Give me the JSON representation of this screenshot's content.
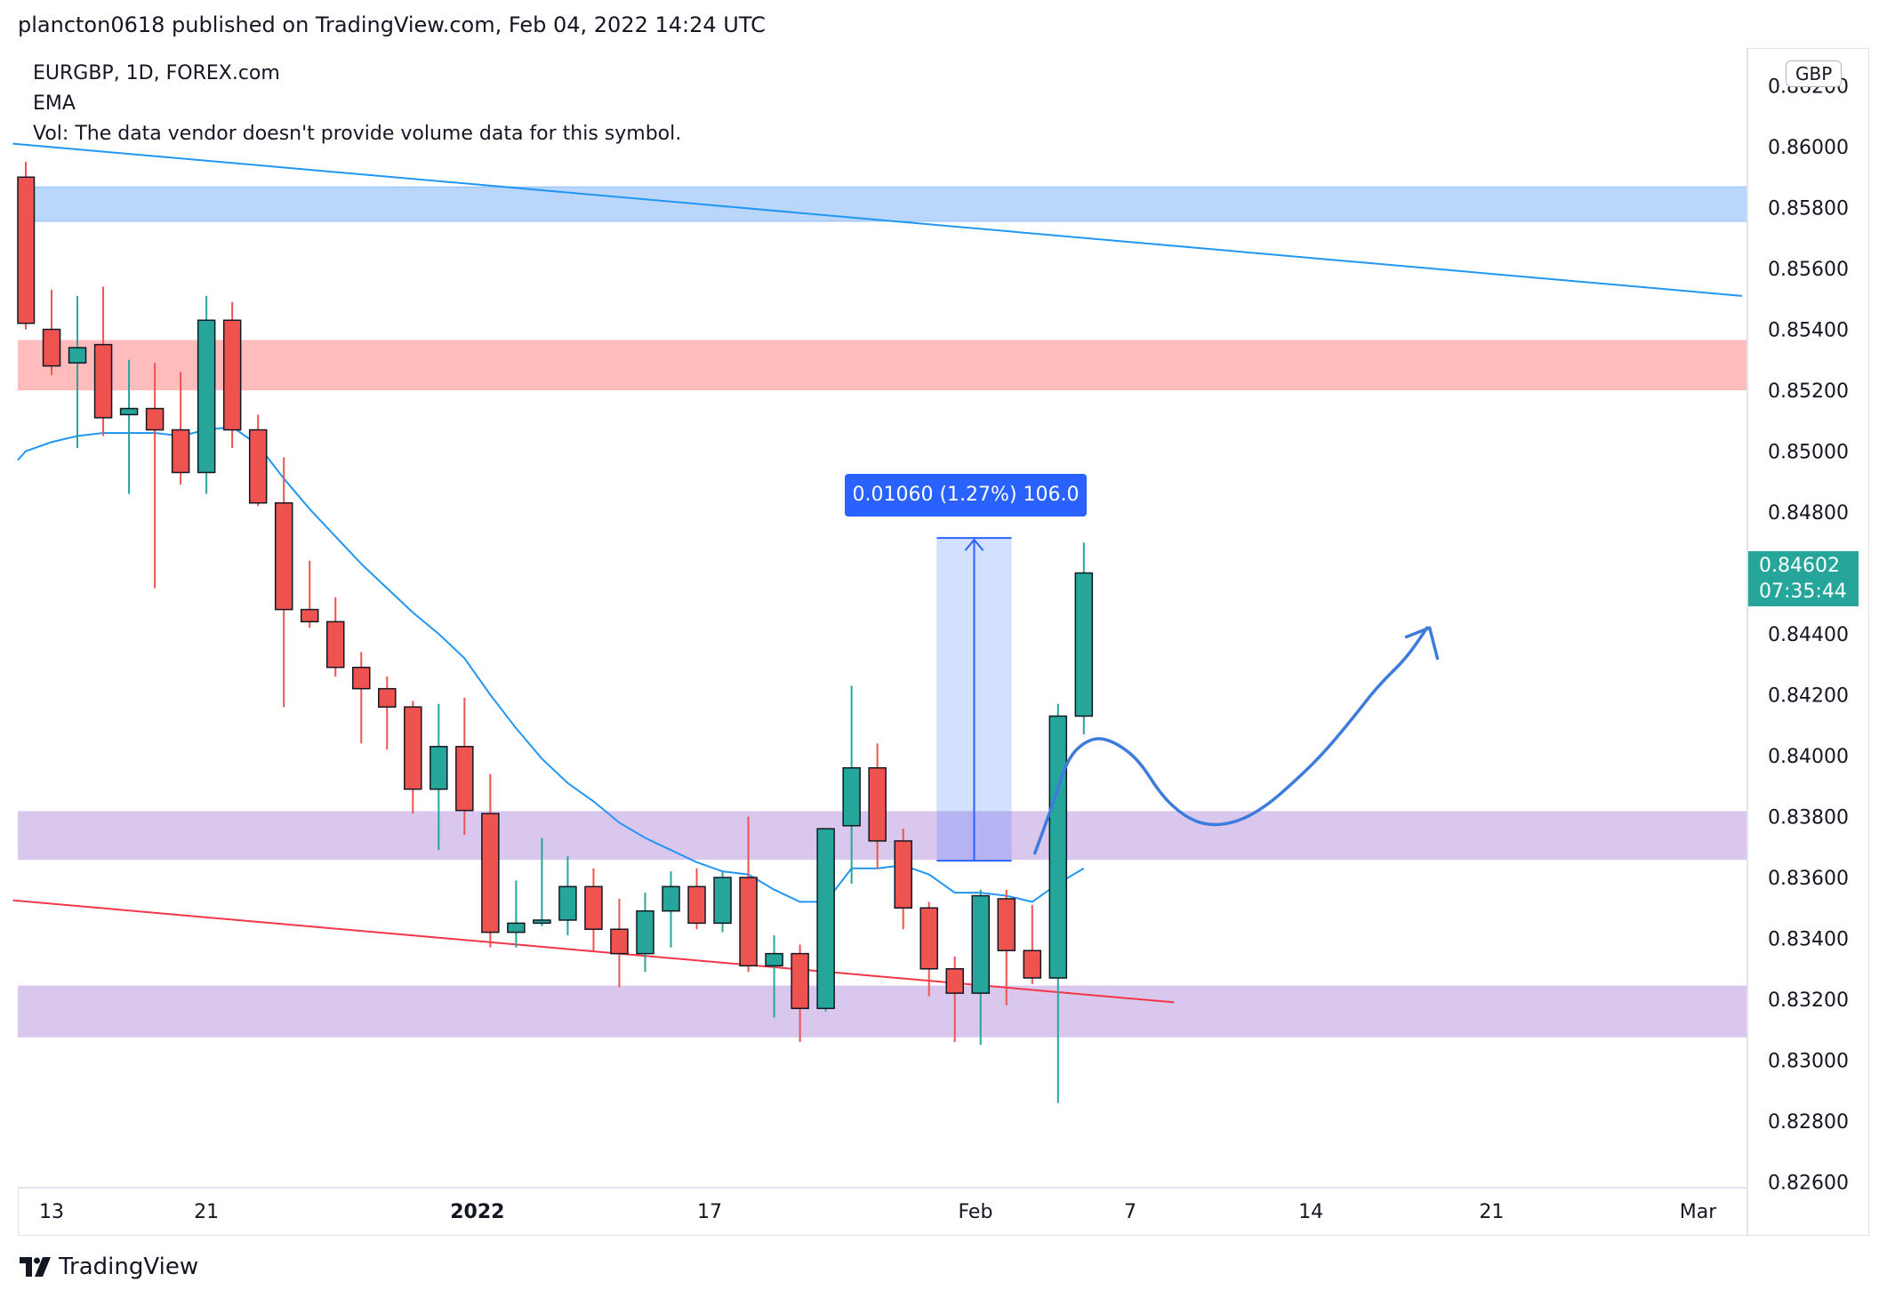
{
  "header": {
    "published_text": "plancton0618 published on TradingView.com, Feb 04, 2022 14:24 UTC"
  },
  "legend": {
    "symbol": "EURGBP, 1D, FOREX.com",
    "indicator": "EMA",
    "volume_note": "Vol: The data vendor doesn't provide volume data for this symbol."
  },
  "currency": "GBP",
  "price_tag": {
    "price": "0.84602",
    "countdown": "07:35:44"
  },
  "measure_label": "0.01060 (1.27%) 106.0",
  "brand": "TradingView",
  "colors": {
    "up": "#26a69a",
    "down": "#ef5350",
    "ema": "#2196f3",
    "trend_upper": "#2196f3",
    "trend_lower": "#f23645",
    "zone_blue": "#bbd6fb",
    "zone_red": "#ffbcbc",
    "zone_purple": "#d9c7ee",
    "measure": "#2962ff",
    "projection": "#3d7bdc"
  },
  "chart_data": {
    "type": "candlestick",
    "symbol": "EURGBP",
    "timeframe": "1D",
    "ylim": [
      0.8255,
      0.8638
    ],
    "price_ticks": [
      "0.86000",
      "0.85800",
      "0.85600",
      "0.85400",
      "0.85200",
      "0.85000",
      "0.84800",
      "0.84400",
      "0.84200",
      "0.84000",
      "0.83800",
      "0.83600",
      "0.83400",
      "0.83200",
      "0.83000",
      "0.82800",
      "0.82600"
    ],
    "time_ticks": [
      {
        "label": "13",
        "index": 1
      },
      {
        "label": "21",
        "index": 7
      },
      {
        "label": "2022",
        "index": 17.5,
        "bold": true
      },
      {
        "label": "17",
        "index": 26.5
      },
      {
        "label": "Feb",
        "index": 36.8
      },
      {
        "label": "7",
        "index": 42.8
      },
      {
        "label": "14",
        "index": 49.8
      },
      {
        "label": "21",
        "index": 56.8
      },
      {
        "label": "Mar",
        "index": 64.8
      }
    ],
    "candles": [
      {
        "o": 0.859,
        "h": 0.8595,
        "l": 0.854,
        "c": 0.8542
      },
      {
        "o": 0.854,
        "h": 0.8553,
        "l": 0.8525,
        "c": 0.8528
      },
      {
        "o": 0.8529,
        "h": 0.8551,
        "l": 0.8501,
        "c": 0.8534
      },
      {
        "o": 0.8535,
        "h": 0.8554,
        "l": 0.8505,
        "c": 0.8511
      },
      {
        "o": 0.8512,
        "h": 0.853,
        "l": 0.8486,
        "c": 0.8514
      },
      {
        "o": 0.8514,
        "h": 0.8529,
        "l": 0.8455,
        "c": 0.8507
      },
      {
        "o": 0.8507,
        "h": 0.8526,
        "l": 0.8489,
        "c": 0.8493
      },
      {
        "o": 0.8493,
        "h": 0.8551,
        "l": 0.8486,
        "c": 0.8543
      },
      {
        "o": 0.8543,
        "h": 0.8549,
        "l": 0.8501,
        "c": 0.8507
      },
      {
        "o": 0.8507,
        "h": 0.8512,
        "l": 0.8482,
        "c": 0.8483
      },
      {
        "o": 0.8483,
        "h": 0.8498,
        "l": 0.8416,
        "c": 0.8448
      },
      {
        "o": 0.8448,
        "h": 0.8464,
        "l": 0.8442,
        "c": 0.8444
      },
      {
        "o": 0.8444,
        "h": 0.8452,
        "l": 0.8426,
        "c": 0.8429
      },
      {
        "o": 0.8429,
        "h": 0.8434,
        "l": 0.8404,
        "c": 0.8422
      },
      {
        "o": 0.8422,
        "h": 0.8426,
        "l": 0.8402,
        "c": 0.8416
      },
      {
        "o": 0.8416,
        "h": 0.8418,
        "l": 0.8381,
        "c": 0.8389
      },
      {
        "o": 0.8389,
        "h": 0.8417,
        "l": 0.8369,
        "c": 0.8403
      },
      {
        "o": 0.8403,
        "h": 0.8419,
        "l": 0.8374,
        "c": 0.8382
      },
      {
        "o": 0.8381,
        "h": 0.8394,
        "l": 0.8337,
        "c": 0.8342
      },
      {
        "o": 0.8342,
        "h": 0.8359,
        "l": 0.8337,
        "c": 0.8345
      },
      {
        "o": 0.8345,
        "h": 0.8373,
        "l": 0.8344,
        "c": 0.8346
      },
      {
        "o": 0.8346,
        "h": 0.8367,
        "l": 0.8341,
        "c": 0.8357
      },
      {
        "o": 0.8357,
        "h": 0.8363,
        "l": 0.8336,
        "c": 0.8343
      },
      {
        "o": 0.8343,
        "h": 0.8353,
        "l": 0.8324,
        "c": 0.8335
      },
      {
        "o": 0.8335,
        "h": 0.8355,
        "l": 0.8329,
        "c": 0.8349
      },
      {
        "o": 0.8349,
        "h": 0.8362,
        "l": 0.8337,
        "c": 0.8357
      },
      {
        "o": 0.8357,
        "h": 0.8363,
        "l": 0.8343,
        "c": 0.8345
      },
      {
        "o": 0.8345,
        "h": 0.8362,
        "l": 0.8342,
        "c": 0.836
      },
      {
        "o": 0.836,
        "h": 0.838,
        "l": 0.8329,
        "c": 0.8331
      },
      {
        "o": 0.8331,
        "h": 0.8341,
        "l": 0.8314,
        "c": 0.8335
      },
      {
        "o": 0.8335,
        "h": 0.8338,
        "l": 0.8306,
        "c": 0.8317
      },
      {
        "o": 0.8317,
        "h": 0.8374,
        "l": 0.8316,
        "c": 0.8376
      },
      {
        "o": 0.8377,
        "h": 0.8423,
        "l": 0.8358,
        "c": 0.8396
      },
      {
        "o": 0.8396,
        "h": 0.8404,
        "l": 0.8363,
        "c": 0.8372
      },
      {
        "o": 0.8372,
        "h": 0.8376,
        "l": 0.8343,
        "c": 0.835
      },
      {
        "o": 0.835,
        "h": 0.8352,
        "l": 0.8321,
        "c": 0.833
      },
      {
        "o": 0.833,
        "h": 0.8334,
        "l": 0.8306,
        "c": 0.8322
      },
      {
        "o": 0.8322,
        "h": 0.8356,
        "l": 0.8305,
        "c": 0.8354
      },
      {
        "o": 0.8353,
        "h": 0.8356,
        "l": 0.8318,
        "c": 0.8336
      },
      {
        "o": 0.8336,
        "h": 0.8351,
        "l": 0.8325,
        "c": 0.8327
      },
      {
        "o": 0.8327,
        "h": 0.8417,
        "l": 0.8286,
        "c": 0.8413
      },
      {
        "o": 0.8413,
        "h": 0.847,
        "l": 0.8407,
        "c": 0.846
      }
    ],
    "ema": [
      0.85,
      0.8503,
      0.8505,
      0.8506,
      0.8506,
      0.8506,
      0.8505,
      0.8507,
      0.8508,
      0.8502,
      0.8491,
      0.8481,
      0.8472,
      0.8463,
      0.8455,
      0.8447,
      0.844,
      0.8432,
      0.842,
      0.8409,
      0.8399,
      0.8391,
      0.8385,
      0.8378,
      0.8373,
      0.8369,
      0.8365,
      0.8362,
      0.8361,
      0.8356,
      0.8352,
      0.8352,
      0.8363,
      0.8363,
      0.8364,
      0.8361,
      0.8355,
      0.8355,
      0.8354,
      0.8352,
      0.8358,
      0.8363
    ],
    "zones": [
      {
        "color": "zone_blue",
        "top": 0.85868,
        "bottom": 0.85755
      },
      {
        "color": "zone_red",
        "top": 0.85365,
        "bottom": 0.852
      },
      {
        "color": "zone_purple",
        "top": 0.83818,
        "bottom": 0.83658
      },
      {
        "color": "zone_purple",
        "top": 0.83245,
        "bottom": 0.83075
      }
    ],
    "trendlines": [
      {
        "color": "trend_upper",
        "from": {
          "index": -0.5,
          "price": 0.8601
        },
        "to": {
          "index": 66.5,
          "price": 0.8551
        }
      },
      {
        "color": "trend_lower",
        "from": {
          "index": -0.5,
          "price": 0.83525
        },
        "to": {
          "index": 44.5,
          "price": 0.8319
        }
      }
    ],
    "measure": {
      "from_index": 35.3,
      "to_index": 38.2,
      "price_low": 0.83655,
      "price_high": 0.84715
    },
    "projection": [
      [
        39.1,
        0.8368
      ],
      [
        39.8,
        0.8384
      ],
      [
        40.4,
        0.84
      ],
      [
        41.3,
        0.8406
      ],
      [
        42.1,
        0.8405
      ],
      [
        43.1,
        0.8399
      ],
      [
        44.0,
        0.8387
      ],
      [
        44.9,
        0.838
      ],
      [
        45.8,
        0.8377
      ],
      [
        46.9,
        0.8378
      ],
      [
        48.0,
        0.8383
      ],
      [
        49.1,
        0.8391
      ],
      [
        50.2,
        0.84
      ],
      [
        51.3,
        0.8411
      ],
      [
        52.4,
        0.8423
      ],
      [
        53.5,
        0.8432
      ],
      [
        54.3,
        0.8442
      ]
    ],
    "projection_arrowhead": [
      [
        53.5,
        0.8439
      ],
      [
        54.4,
        0.8442
      ],
      [
        54.7,
        0.8432
      ]
    ]
  }
}
